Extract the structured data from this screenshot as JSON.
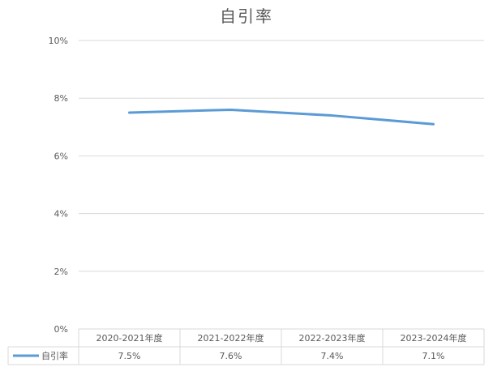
{
  "chart_data": {
    "type": "line",
    "title": "自引率",
    "categories": [
      "2020-2021年度",
      "2021-2022年度",
      "2022-2023年度",
      "2023-2024年度"
    ],
    "series": [
      {
        "name": "自引率",
        "values": [
          7.5,
          7.6,
          7.4,
          7.1
        ],
        "labels": [
          "7.5%",
          "7.6%",
          "7.4%",
          "7.1%"
        ],
        "color": "#5B9BD5"
      }
    ],
    "ylim": [
      0,
      10
    ],
    "yticks": [
      "0%",
      "2%",
      "4%",
      "6%",
      "8%",
      "10%"
    ],
    "grid": true,
    "legend": "data-table"
  }
}
